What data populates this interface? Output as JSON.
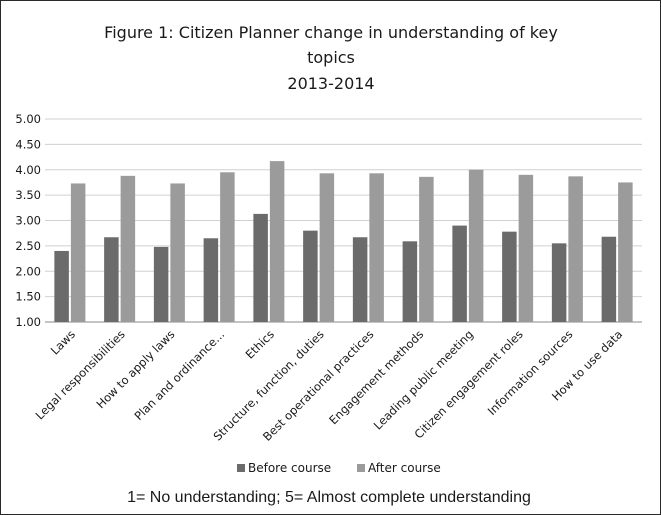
{
  "chart_data": {
    "type": "bar",
    "title": [
      "Figure 1: Citizen Planner change in understanding of key",
      "topics",
      "2013-2014"
    ],
    "categories": [
      "Laws",
      "Legal responsibilities",
      "How to apply laws",
      "Plan and ordinance...",
      "Ethics",
      "Structure, function, duties",
      "Best operational practices",
      "Engagement methods",
      "Leading public meeting",
      "Citizen engagement roles",
      "Information sources",
      "How to use data"
    ],
    "series": [
      {
        "name": "Before course",
        "values": [
          2.4,
          2.67,
          2.48,
          2.65,
          3.13,
          2.8,
          2.67,
          2.59,
          2.9,
          2.78,
          2.55,
          2.68
        ]
      },
      {
        "name": "After course",
        "values": [
          3.73,
          3.88,
          3.73,
          3.95,
          4.17,
          3.93,
          3.93,
          3.86,
          4.0,
          3.9,
          3.87,
          3.75
        ]
      }
    ],
    "ylim": [
      1.0,
      5.0
    ],
    "yticks": [
      "1.00",
      "1.50",
      "2.00",
      "2.50",
      "3.00",
      "3.50",
      "4.00",
      "4.50",
      "5.00"
    ],
    "grid": true,
    "legend_position": "bottom",
    "colors": {
      "Before course": "#6b6b6b",
      "After course": "#9b9b9b"
    },
    "note": "1= No understanding; 5= Almost complete understanding"
  }
}
